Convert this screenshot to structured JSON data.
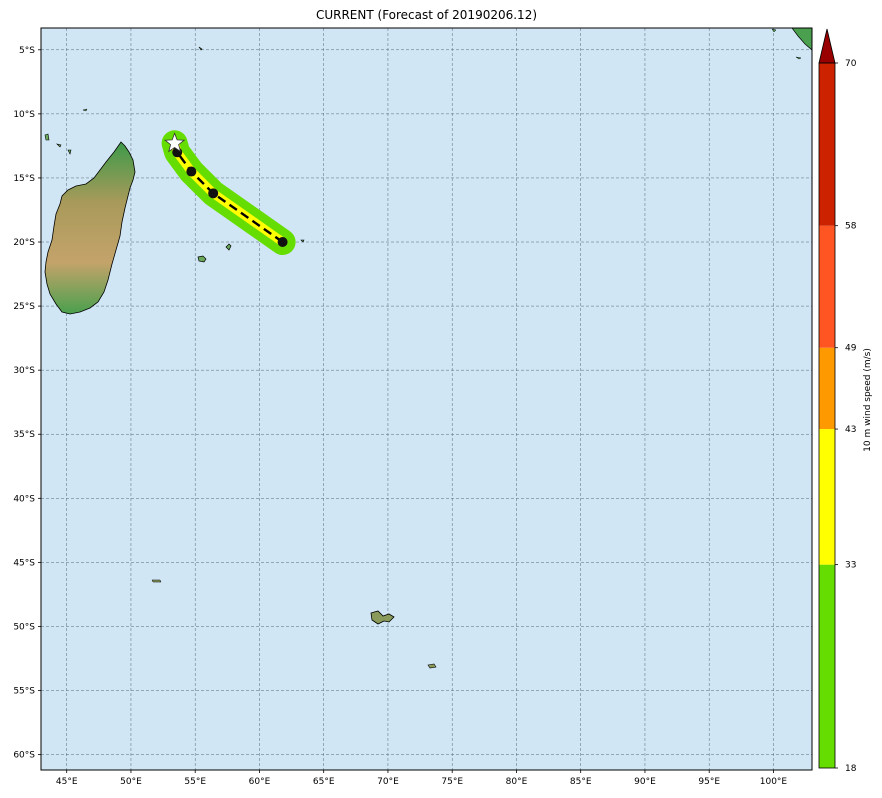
{
  "title": "CURRENT (Forecast of 20190206.12)",
  "map": {
    "lon_range": [
      43,
      103
    ],
    "lat_range": [
      -61.2,
      -3.3
    ],
    "lon_ticks": [
      {
        "value": 45,
        "label": "45°E"
      },
      {
        "value": 50,
        "label": "50°E"
      },
      {
        "value": 55,
        "label": "55°E"
      },
      {
        "value": 60,
        "label": "60°E"
      },
      {
        "value": 65,
        "label": "65°E"
      },
      {
        "value": 70,
        "label": "70°E"
      },
      {
        "value": 75,
        "label": "75°E"
      },
      {
        "value": 80,
        "label": "80°E"
      },
      {
        "value": 85,
        "label": "85°E"
      },
      {
        "value": 90,
        "label": "90°E"
      },
      {
        "value": 95,
        "label": "95°E"
      },
      {
        "value": 100,
        "label": "100°E"
      }
    ],
    "lat_ticks": [
      {
        "value": -5,
        "label": "5°S"
      },
      {
        "value": -10,
        "label": "10°S"
      },
      {
        "value": -15,
        "label": "15°S"
      },
      {
        "value": -20,
        "label": "20°S"
      },
      {
        "value": -25,
        "label": "25°S"
      },
      {
        "value": -30,
        "label": "30°S"
      },
      {
        "value": -35,
        "label": "35°S"
      },
      {
        "value": -40,
        "label": "40°S"
      },
      {
        "value": -45,
        "label": "45°S"
      },
      {
        "value": -50,
        "label": "50°S"
      },
      {
        "value": -55,
        "label": "55°S"
      },
      {
        "value": -60,
        "label": "60°S"
      }
    ],
    "ocean_color": "#d0e6f4",
    "grid": true
  },
  "track": {
    "points": [
      {
        "lon": 53.4,
        "lat": -12.3,
        "marker": "star"
      },
      {
        "lon": 53.6,
        "lat": -13.0,
        "marker": "dot"
      },
      {
        "lon": 54.7,
        "lat": -14.5,
        "marker": "dot"
      },
      {
        "lon": 56.4,
        "lat": -16.2,
        "marker": "dot"
      },
      {
        "lon": 61.8,
        "lat": -20.0,
        "marker": "dot"
      }
    ],
    "swath_color": "#66dd00",
    "line_color": "#ffff00",
    "dash_color": "#000000"
  },
  "colorbar": {
    "label": "10 m wind speed (m/s)",
    "levels": [
      {
        "value": 18,
        "label": "18"
      },
      {
        "value": 33,
        "label": "33"
      },
      {
        "value": 43,
        "label": "43"
      },
      {
        "value": 49,
        "label": "49"
      },
      {
        "value": 58,
        "label": "58"
      },
      {
        "value": 70,
        "label": "70"
      }
    ],
    "colors": [
      "#66dd00",
      "#ffff00",
      "#ff9900",
      "#ff5522",
      "#cc2200"
    ],
    "extend_color": "#990000"
  }
}
